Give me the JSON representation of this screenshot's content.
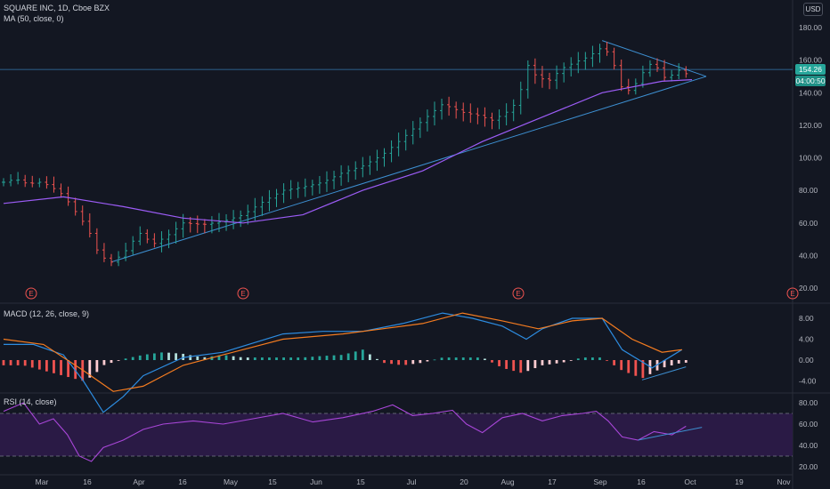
{
  "header": {
    "symbol": "SQUARE INC, 1D, Cboe BZX",
    "ma_legend": "MA (50, close, 0)",
    "currency": "USD",
    "last_price_tag": "154.26",
    "countdown_tag": "04:00:50"
  },
  "panes": {
    "macd_legend": "MACD (12, 26, close, 9)",
    "rsi_legend": "RSI (14, close)"
  },
  "earnings_marker": "E",
  "colors": {
    "background": "#131722",
    "up": "#26a69a",
    "down": "#ef5350",
    "ma": "#9c5cf6",
    "trendline": "#3d8fd1",
    "macd_line": "#2d8ce0",
    "signal_line": "#f57c20",
    "rsi_line": "#a846d8",
    "rsi_band": "#2a1a45"
  },
  "chart_data": [
    {
      "type": "line",
      "pane": "price",
      "yticks": [
        "20.00",
        "40.00",
        "60.00",
        "80.00",
        "100.00",
        "120.00",
        "140.00",
        "160.00",
        "180.00"
      ],
      "ylim": [
        14,
        191
      ],
      "xticks": [
        "Mar",
        "16",
        "Apr",
        "16",
        "May",
        "15",
        "Jun",
        "15",
        "Jul",
        "20",
        "Aug",
        "17",
        "Sep",
        "16",
        "Oct",
        "19",
        "Nov"
      ],
      "series": [
        {
          "values": [
            [
              0,
              85
            ],
            [
              6,
              87
            ],
            [
              12,
              84
            ],
            [
              18,
              85
            ],
            [
              23,
              83
            ],
            [
              30,
              77
            ],
            [
              36,
              67
            ],
            [
              42,
              57
            ],
            [
              48,
              40
            ],
            [
              54,
              36
            ],
            [
              60,
              41
            ],
            [
              68,
              54
            ],
            [
              75,
              47
            ],
            [
              82,
              52
            ],
            [
              90,
              60
            ],
            [
              100,
              59
            ],
            [
              110,
              61
            ],
            [
              120,
              65
            ],
            [
              130,
              73
            ],
            [
              140,
              80
            ],
            [
              150,
              82
            ],
            [
              160,
              85
            ],
            [
              170,
              91
            ],
            [
              180,
              95
            ],
            [
              190,
              102
            ],
            [
              200,
              112
            ],
            [
              210,
              123
            ],
            [
              220,
              133
            ],
            [
              230,
              128
            ],
            [
              238,
              126
            ],
            [
              245,
              123
            ],
            [
              252,
              128
            ],
            [
              258,
              135
            ],
            [
              262,
              158
            ],
            [
              267,
              150
            ],
            [
              273,
              147
            ],
            [
              280,
              155
            ],
            [
              287,
              159
            ],
            [
              293,
              162
            ],
            [
              300,
              168
            ],
            [
              305,
              162
            ],
            [
              308,
              146
            ],
            [
              312,
              140
            ],
            [
              318,
              147
            ],
            [
              323,
              158
            ],
            [
              328,
              155
            ],
            [
              332,
              148
            ],
            [
              336,
              152
            ],
            [
              340,
              155
            ],
            [
              343,
              150
            ]
          ]
        },
        {
          "name": "MA (50, close, 0)",
          "values": [
            [
              0,
              72
            ],
            [
              30,
              76
            ],
            [
              60,
              70
            ],
            [
              90,
              63
            ],
            [
              120,
              60
            ],
            [
              150,
              65
            ],
            [
              180,
              80
            ],
            [
              210,
              92
            ],
            [
              240,
              110
            ],
            [
              270,
              125
            ],
            [
              300,
              140
            ],
            [
              330,
              147
            ],
            [
              345,
              148
            ]
          ]
        }
      ]
    },
    {
      "type": "bar",
      "pane": "macd",
      "yticks": [
        "8.00",
        "4.00",
        "0.00",
        "-4.00"
      ],
      "series": [
        {
          "name": "MACD (12, 26, close, 9)",
          "values": [
            [
              0,
              3
            ],
            [
              15,
              3
            ],
            [
              30,
              1
            ],
            [
              40,
              -4
            ],
            [
              50,
              -10
            ],
            [
              60,
              -7
            ],
            [
              70,
              -3
            ],
            [
              90,
              0.5
            ],
            [
              110,
              1.5
            ],
            [
              140,
              5
            ],
            [
              160,
              5.5
            ],
            [
              180,
              5.5
            ],
            [
              200,
              7
            ],
            [
              220,
              9
            ],
            [
              235,
              8
            ],
            [
              250,
              6.5
            ],
            [
              262,
              4
            ],
            [
              270,
              6
            ],
            [
              285,
              8
            ],
            [
              300,
              8
            ],
            [
              310,
              2
            ],
            [
              325,
              -1.5
            ],
            [
              340,
              2
            ]
          ]
        },
        {
          "values": [
            [
              0,
              4
            ],
            [
              20,
              3
            ],
            [
              40,
              -2
            ],
            [
              55,
              -6
            ],
            [
              70,
              -5
            ],
            [
              90,
              -1
            ],
            [
              110,
              1
            ],
            [
              140,
              4
            ],
            [
              170,
              5
            ],
            [
              190,
              6
            ],
            [
              210,
              7
            ],
            [
              230,
              9
            ],
            [
              250,
              7.5
            ],
            [
              268,
              6
            ],
            [
              285,
              7.5
            ],
            [
              300,
              8
            ],
            [
              315,
              4
            ],
            [
              330,
              1.5
            ],
            [
              340,
              2
            ]
          ]
        },
        {
          "values": [
            [
              0,
              -1
            ],
            [
              10,
              -1
            ],
            [
              20,
              -2
            ],
            [
              30,
              -3
            ],
            [
              40,
              -4
            ],
            [
              45,
              -3
            ],
            [
              50,
              -1
            ],
            [
              60,
              0.2
            ],
            [
              70,
              1
            ],
            [
              80,
              1.5
            ],
            [
              90,
              1.2
            ],
            [
              100,
              0.5
            ],
            [
              110,
              1
            ],
            [
              120,
              0.5
            ],
            [
              130,
              0.5
            ],
            [
              140,
              0.5
            ],
            [
              150,
              0.5
            ],
            [
              160,
              0.8
            ],
            [
              170,
              1
            ],
            [
              180,
              2
            ],
            [
              190,
              -0.5
            ],
            [
              200,
              -1
            ],
            [
              210,
              -0.5
            ],
            [
              220,
              0.5
            ],
            [
              230,
              0.5
            ],
            [
              240,
              0.5
            ],
            [
              250,
              -1.5
            ],
            [
              260,
              -2.5
            ],
            [
              270,
              -1
            ],
            [
              280,
              -0.5
            ],
            [
              290,
              0.5
            ],
            [
              300,
              0.5
            ],
            [
              310,
              -2
            ],
            [
              320,
              -3.5
            ],
            [
              330,
              -1.5
            ],
            [
              340,
              -0.5
            ]
          ]
        }
      ]
    },
    {
      "type": "line",
      "pane": "rsi",
      "yticks": [
        "80.00",
        "60.00",
        "40.00",
        "20.00"
      ],
      "series": [
        {
          "name": "RSI (14, close)",
          "values": [
            [
              0,
              72
            ],
            [
              10,
              80
            ],
            [
              18,
              60
            ],
            [
              25,
              65
            ],
            [
              32,
              50
            ],
            [
              38,
              30
            ],
            [
              44,
              25
            ],
            [
              50,
              38
            ],
            [
              60,
              45
            ],
            [
              70,
              55
            ],
            [
              80,
              60
            ],
            [
              95,
              63
            ],
            [
              110,
              60
            ],
            [
              125,
              65
            ],
            [
              140,
              70
            ],
            [
              155,
              62
            ],
            [
              170,
              66
            ],
            [
              185,
              72
            ],
            [
              195,
              78
            ],
            [
              205,
              68
            ],
            [
              215,
              70
            ],
            [
              225,
              73
            ],
            [
              232,
              60
            ],
            [
              240,
              52
            ],
            [
              250,
              66
            ],
            [
              260,
              70
            ],
            [
              270,
              63
            ],
            [
              280,
              68
            ],
            [
              290,
              70
            ],
            [
              297,
              72
            ],
            [
              303,
              63
            ],
            [
              310,
              48
            ],
            [
              318,
              45
            ],
            [
              326,
              53
            ],
            [
              335,
              50
            ],
            [
              342,
              58
            ]
          ]
        }
      ]
    }
  ]
}
